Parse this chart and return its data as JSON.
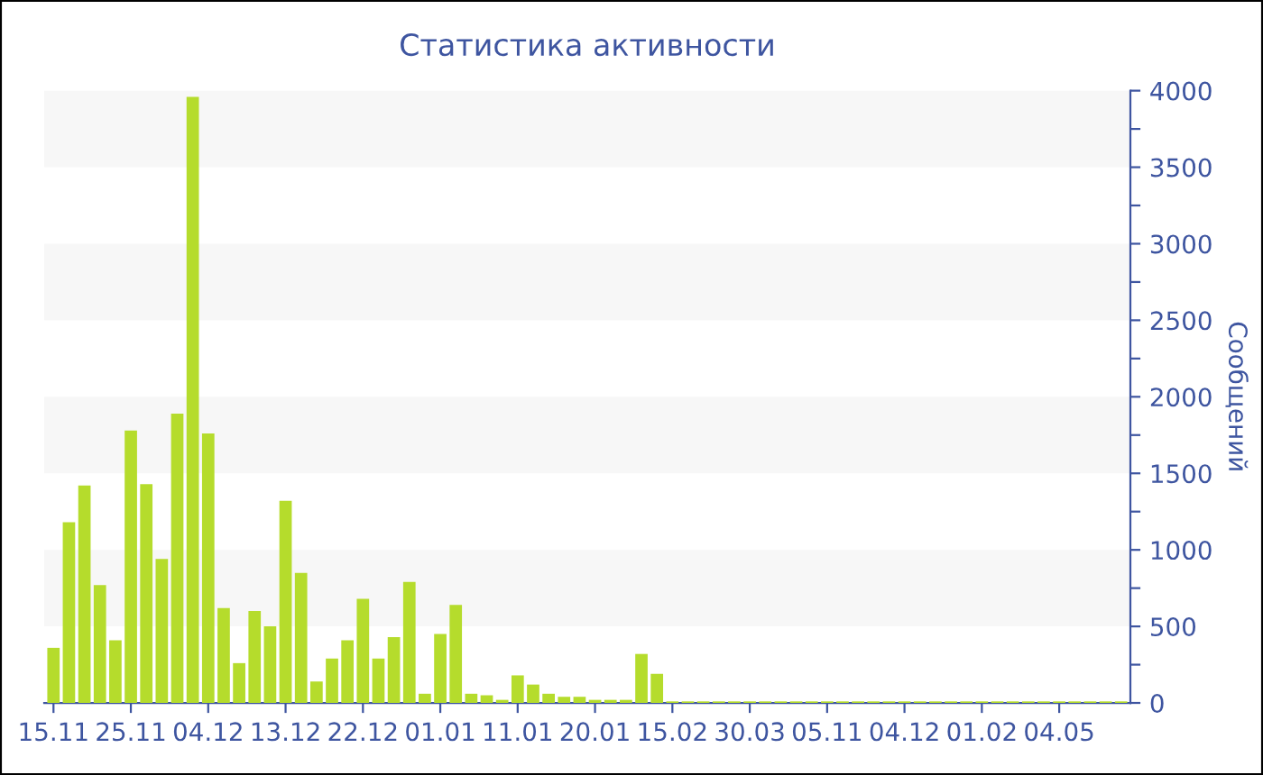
{
  "chart_data": {
    "type": "bar",
    "title": "Статистика активности",
    "ylabel": "Сообщений",
    "color": "#b5dc2c",
    "categories": [
      "15.11",
      null,
      null,
      null,
      null,
      "25.11",
      null,
      null,
      null,
      null,
      "04.12",
      null,
      null,
      null,
      null,
      "13.12",
      null,
      null,
      null,
      null,
      "22.12",
      null,
      null,
      null,
      null,
      "01.01",
      null,
      null,
      null,
      null,
      "11.01",
      null,
      null,
      null,
      null,
      "20.01",
      null,
      null,
      null,
      null,
      "15.02",
      null,
      null,
      null,
      null,
      "30.03",
      null,
      null,
      null,
      null,
      "05.11",
      null,
      null,
      null,
      null,
      "04.12",
      null,
      null,
      null,
      null,
      "01.02",
      null,
      null,
      null,
      null,
      "04.05",
      null,
      null,
      null,
      null
    ],
    "values": [
      360,
      1180,
      1420,
      770,
      410,
      1780,
      1430,
      940,
      1890,
      3960,
      1760,
      620,
      260,
      600,
      500,
      1320,
      850,
      140,
      290,
      410,
      680,
      290,
      430,
      790,
      60,
      450,
      640,
      60,
      50,
      20,
      180,
      120,
      60,
      40,
      40,
      20,
      20,
      20,
      320,
      190,
      10,
      10,
      10,
      10,
      10,
      10,
      10,
      10,
      10,
      10,
      10,
      10,
      10,
      10,
      10,
      10,
      10,
      10,
      10,
      10,
      10,
      10,
      10,
      10,
      10,
      10,
      10,
      10,
      10,
      10
    ],
    "ylim": [
      0,
      4000
    ],
    "yticks": [
      0,
      {
        "value": 250,
        "label": null
      },
      500,
      {
        "value": 750,
        "label": null
      },
      1000,
      {
        "value": 1250,
        "label": null
      },
      1500,
      {
        "value": 1750,
        "label": null
      },
      2000,
      {
        "value": 2250,
        "label": null
      },
      2500,
      {
        "value": 2750,
        "label": null
      },
      3000,
      {
        "value": 3250,
        "label": null
      },
      3500,
      {
        "value": 3750,
        "label": null
      },
      4000
    ],
    "bands": [
      {
        "axis": "y",
        "from": 500,
        "to": 1000,
        "color": "#f7f7f7"
      },
      {
        "axis": "y",
        "from": 1500,
        "to": 2000,
        "color": "#f7f7f7"
      },
      {
        "axis": "y",
        "from": 2500,
        "to": 3000,
        "color": "#f7f7f7"
      },
      {
        "axis": "y",
        "from": 3500,
        "to": 4000,
        "color": "#f7f7f7"
      }
    ],
    "grid": false,
    "legend": false
  }
}
